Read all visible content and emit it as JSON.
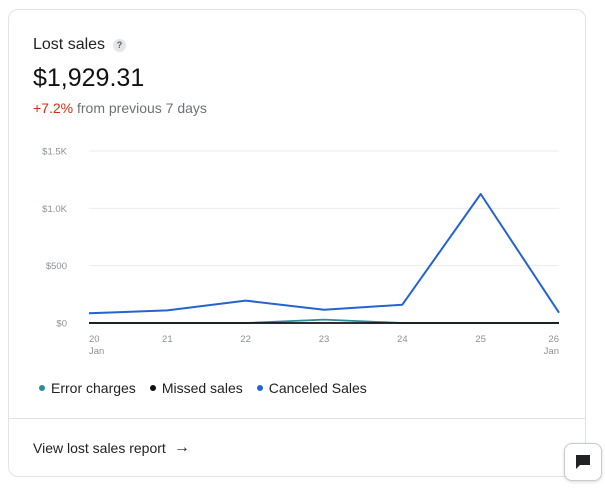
{
  "card": {
    "title": "Lost sales",
    "help_icon": "?",
    "amount": "$1,929.31",
    "change": "+7.2%",
    "change_suffix": "from previous 7 days"
  },
  "chart_data": {
    "type": "line",
    "x": [
      "20 Jan",
      "21",
      "22",
      "23",
      "24",
      "25",
      "26 Jan"
    ],
    "x_tick_labels": [
      [
        "20",
        "Jan"
      ],
      [
        "21"
      ],
      [
        "22"
      ],
      [
        "23"
      ],
      [
        "24"
      ],
      [
        "25"
      ],
      [
        "26",
        "Jan"
      ]
    ],
    "y_tick_labels": [
      "$0",
      "$500",
      "$1.0K",
      "$1.5K"
    ],
    "y_ticks": [
      0,
      500,
      1000,
      1500
    ],
    "ylim": [
      0,
      1500
    ],
    "grid": true,
    "legend_position": "bottom-left",
    "series": [
      {
        "name": "Error charges",
        "color": "#2c8c99",
        "values": [
          0,
          0,
          0,
          30,
          0,
          0,
          0
        ]
      },
      {
        "name": "Missed sales",
        "color": "#111111",
        "values": [
          0,
          0,
          0,
          0,
          0,
          0,
          0
        ]
      },
      {
        "name": "Canceled Sales",
        "color": "#2463d1",
        "values": [
          85,
          110,
          195,
          115,
          160,
          1125,
          90
        ]
      }
    ]
  },
  "footer": {
    "link_label": "View lost sales report",
    "arrow": "→"
  },
  "icons": {
    "chat": "chat-icon"
  }
}
